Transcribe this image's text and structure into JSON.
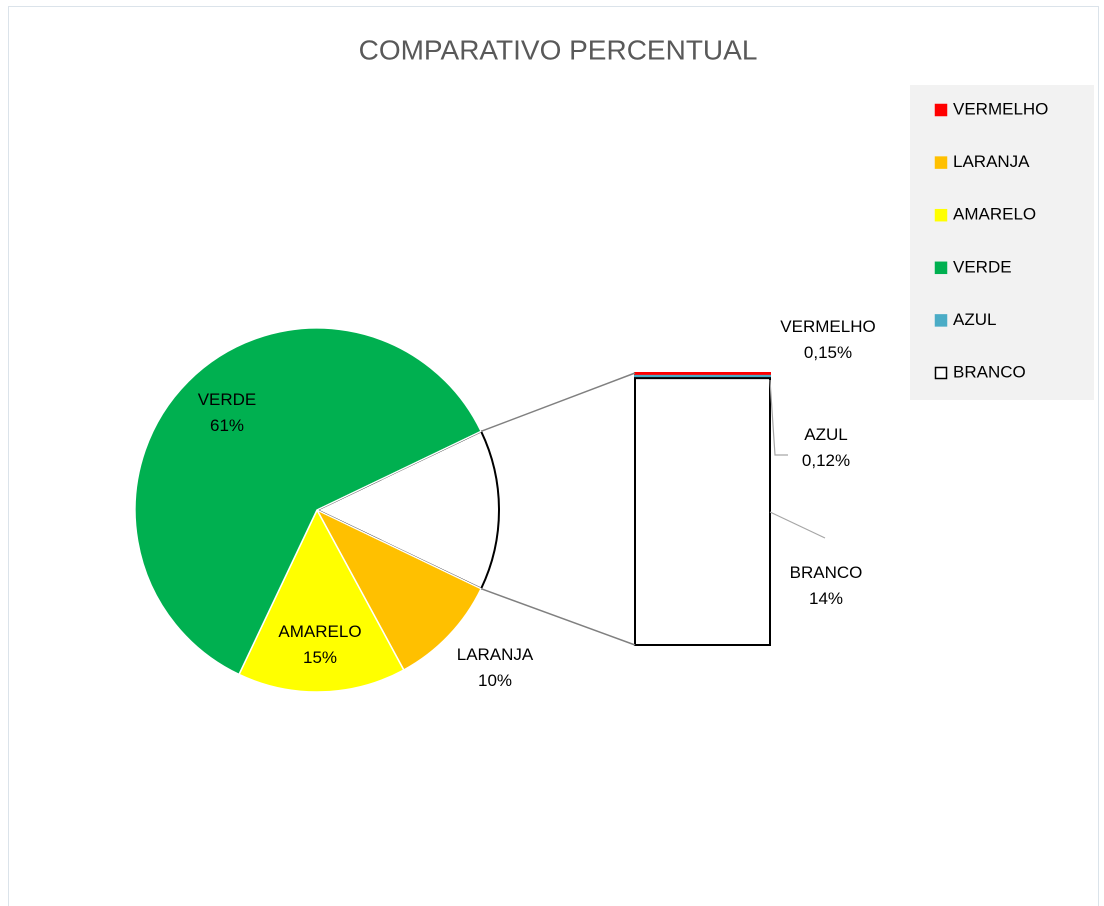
{
  "chart_data": {
    "type": "bar-of-pie",
    "title": "COMPARATIVO PERCENTUAL",
    "categories": [
      "VERMELHO",
      "LARANJA",
      "AMARELO",
      "VERDE",
      "AZUL",
      "BRANCO"
    ],
    "values": [
      0.15,
      10,
      15,
      61,
      0.12,
      14
    ],
    "value_labels": [
      "0,15%",
      "10%",
      "15%",
      "61%",
      "0,12%",
      "14%"
    ],
    "colors": [
      "#ff0000",
      "#ffc000",
      "#ffff00",
      "#00b050",
      "#4bacc6",
      "#ffffff"
    ],
    "edge_colors": [
      "#ffffff",
      "#ffffff",
      "#ffffff",
      "#ffffff",
      "#ffffff",
      "#000000"
    ],
    "second_plot": [
      true,
      false,
      false,
      false,
      true,
      true
    ],
    "legend": "right"
  }
}
